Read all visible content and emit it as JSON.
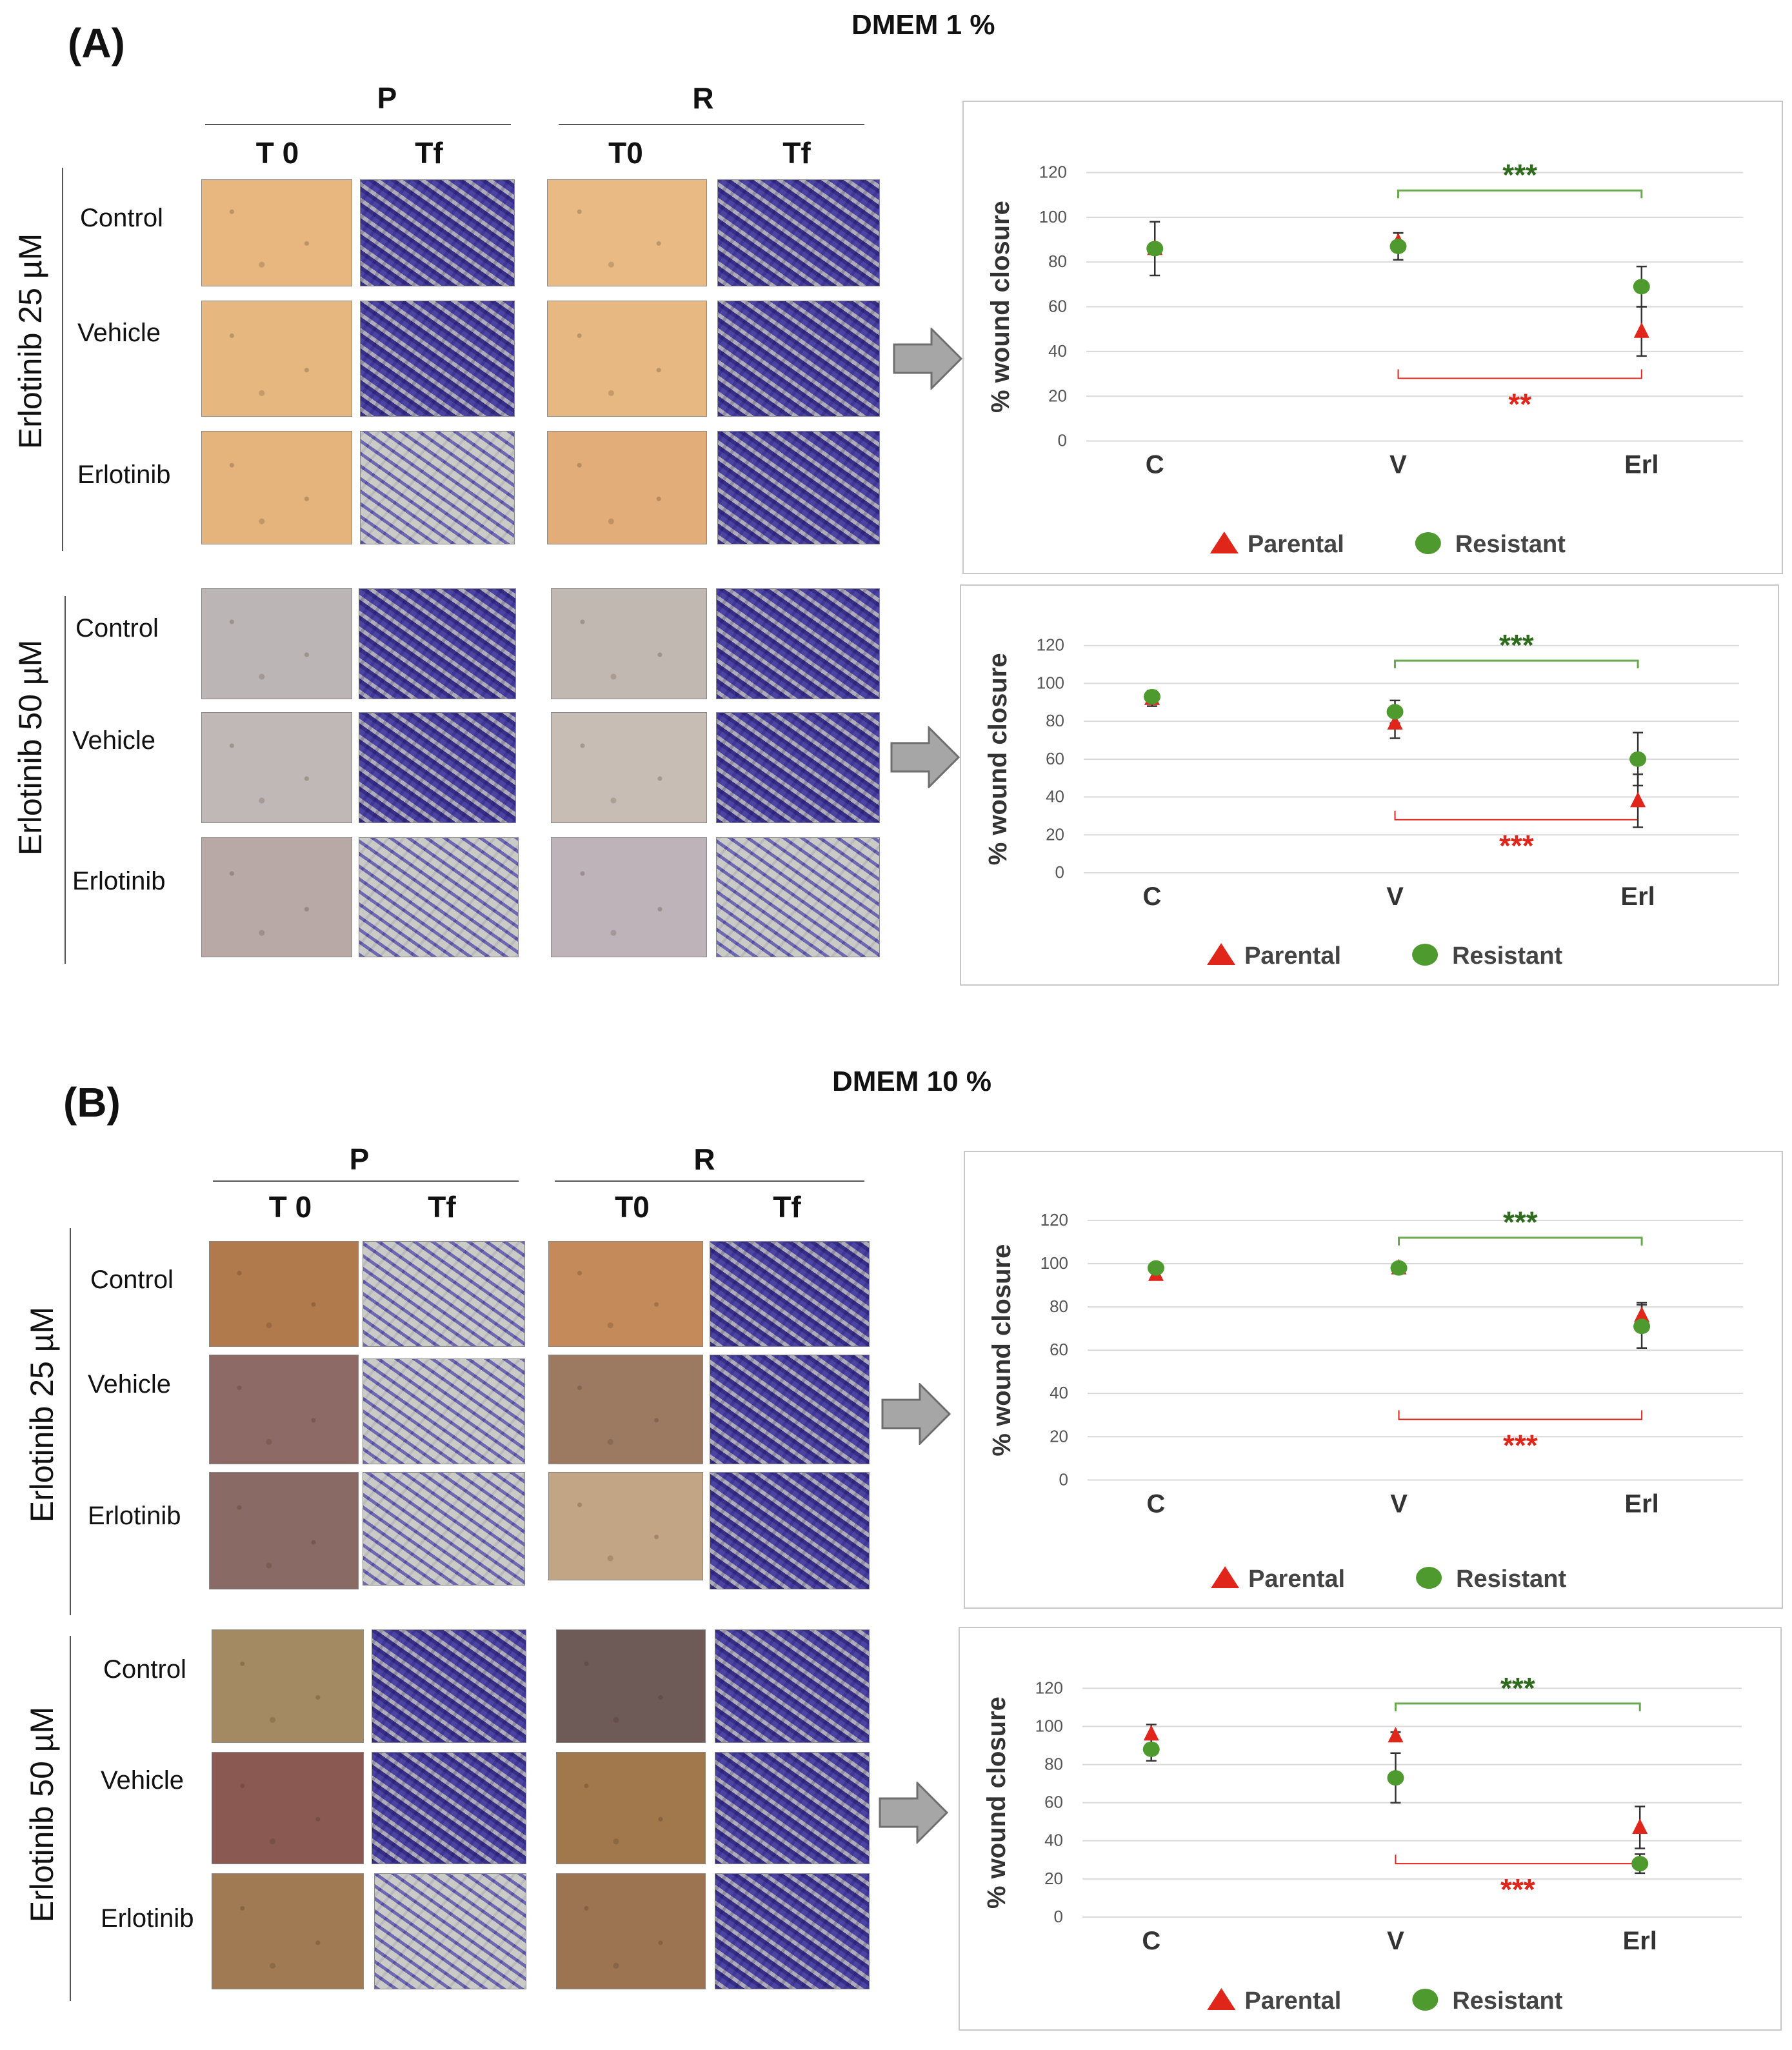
{
  "panels": [
    {
      "label": "(A)",
      "medium": "DMEM 1 %",
      "group_p": "P",
      "group_r": "R",
      "col_t0_p": "T 0",
      "col_tf_p": "Tf",
      "col_t0_r": "T0",
      "col_tf_r": "Tf",
      "conc_top": "Erlotinib 25 µM",
      "conc_bottom": "Erlotinib 50 µM",
      "rows": [
        "Control",
        "Vehicle",
        "Erlotinib"
      ],
      "rows2": [
        "Control",
        "Vehicle",
        "Erlotinib"
      ]
    },
    {
      "label": "(B)",
      "medium": "DMEM 10 %",
      "group_p": "P",
      "group_r": "R",
      "col_t0_p": "T 0",
      "col_tf_p": "Tf",
      "col_t0_r": "T0",
      "col_tf_r": "Tf",
      "conc_top": "Erlotinib 25 µM",
      "conc_bottom": "Erlotinib 50 µM",
      "rows": [
        "Control",
        "Vehicle",
        "Erlotinib"
      ],
      "rows2": [
        "Control",
        "Vehicle",
        "Erlotinib"
      ]
    }
  ],
  "colors": {
    "parental": "#e0261b",
    "resistant": "#4e9a2f",
    "sig_resistant_bracket": "#6aa84f",
    "sig_resistant_text": "#2e6b1d",
    "sig_parental": "#e0261b",
    "grid": "#d9d9d9"
  },
  "chart_data": [
    {
      "type": "scatter",
      "title": "DMEM 1 % – Erlotinib 25 µM",
      "ylabel": "% wound closure",
      "categories": [
        "C",
        "V",
        "Erl"
      ],
      "ylim": [
        0,
        120
      ],
      "yticks": [
        0,
        20,
        40,
        60,
        80,
        100,
        120
      ],
      "series": [
        {
          "name": "Parental",
          "marker": "triangle",
          "values": [
            86,
            89,
            49
          ],
          "errors": [
            12,
            4,
            11
          ]
        },
        {
          "name": "Resistant",
          "marker": "circle",
          "values": [
            86,
            87,
            69
          ],
          "errors": [
            0,
            6,
            9
          ]
        }
      ],
      "significance": [
        {
          "series": "Resistant",
          "label": "***",
          "from": "V",
          "to": "Erl",
          "position": "above"
        },
        {
          "series": "Parental",
          "label": "**",
          "from": "V",
          "to": "Erl",
          "position": "below"
        }
      ],
      "legend": [
        "Parental",
        "Resistant"
      ]
    },
    {
      "type": "scatter",
      "title": "DMEM 1 % – Erlotinib 50 µM",
      "ylabel": "% wound closure",
      "categories": [
        "C",
        "V",
        "Erl"
      ],
      "ylim": [
        0,
        120
      ],
      "yticks": [
        0,
        20,
        40,
        60,
        80,
        100,
        120
      ],
      "series": [
        {
          "name": "Parental",
          "marker": "triangle",
          "values": [
            92,
            79,
            38
          ],
          "errors": [
            4,
            8,
            14
          ]
        },
        {
          "name": "Resistant",
          "marker": "circle",
          "values": [
            93,
            85,
            60
          ],
          "errors": [
            3,
            6,
            14
          ]
        }
      ],
      "significance": [
        {
          "series": "Resistant",
          "label": "***",
          "from": "V",
          "to": "Erl",
          "position": "above"
        },
        {
          "series": "Parental",
          "label": "***",
          "from": "V",
          "to": "Erl",
          "position": "below"
        }
      ],
      "legend": [
        "Parental",
        "Resistant"
      ]
    },
    {
      "type": "scatter",
      "title": "DMEM 10 % – Erlotinib 25 µM",
      "ylabel": "% wound closure",
      "categories": [
        "C",
        "V",
        "Erl"
      ],
      "ylim": [
        0,
        120
      ],
      "yticks": [
        0,
        20,
        40,
        60,
        80,
        100,
        120
      ],
      "series": [
        {
          "name": "Parental",
          "marker": "triangle",
          "values": [
            95,
            98,
            76
          ],
          "errors": [
            1,
            1,
            6
          ]
        },
        {
          "name": "Resistant",
          "marker": "circle",
          "values": [
            98,
            98,
            71
          ],
          "errors": [
            1,
            1,
            10
          ]
        }
      ],
      "significance": [
        {
          "series": "Resistant",
          "label": "***",
          "from": "V",
          "to": "Erl",
          "position": "above"
        },
        {
          "series": "Parental",
          "label": "***",
          "from": "V",
          "to": "Erl",
          "position": "below"
        }
      ],
      "legend": [
        "Parental",
        "Resistant"
      ]
    },
    {
      "type": "scatter",
      "title": "DMEM 10 % – Erlotinib 50 µM",
      "ylabel": "% wound closure",
      "categories": [
        "C",
        "V",
        "Erl"
      ],
      "ylim": [
        0,
        120
      ],
      "yticks": [
        0,
        20,
        40,
        60,
        80,
        100,
        120
      ],
      "series": [
        {
          "name": "Parental",
          "marker": "triangle",
          "values": [
            96,
            95,
            47
          ],
          "errors": [
            5,
            2,
            11
          ]
        },
        {
          "name": "Resistant",
          "marker": "circle",
          "values": [
            88,
            73,
            28
          ],
          "errors": [
            6,
            13,
            5
          ]
        }
      ],
      "significance": [
        {
          "series": "Resistant",
          "label": "***",
          "from": "V",
          "to": "Erl",
          "position": "above"
        },
        {
          "series": "Parental",
          "label": "***",
          "from": "V",
          "to": "Erl",
          "position": "below"
        }
      ],
      "legend": [
        "Parental",
        "Resistant"
      ]
    }
  ]
}
